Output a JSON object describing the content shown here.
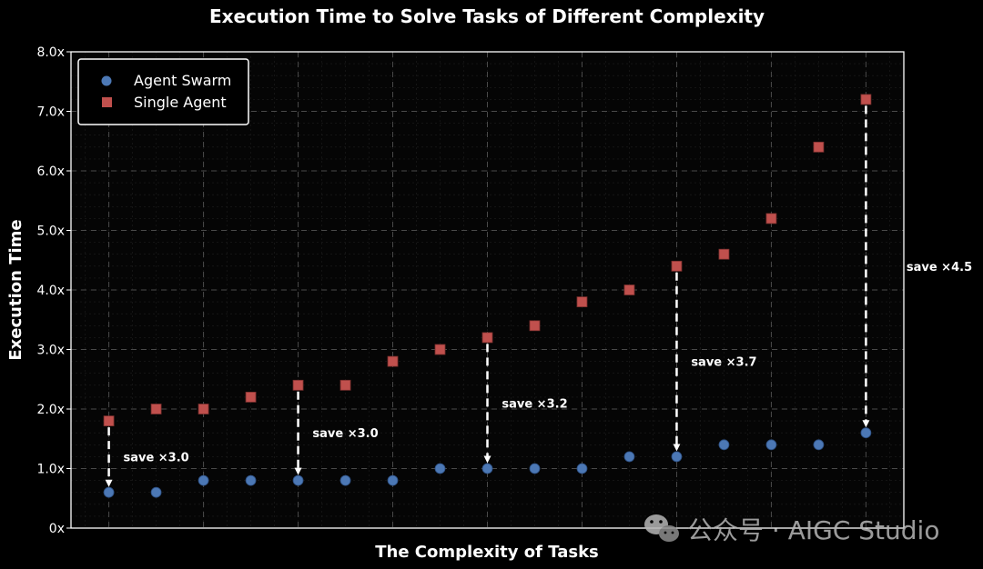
{
  "chart_data": {
    "type": "scatter",
    "title": "Execution Time to Solve Tasks of Different Complexity",
    "xlabel": "The Complexity of Tasks",
    "ylabel": "Execution Time",
    "x": [
      1,
      2,
      3,
      4,
      5,
      6,
      7,
      8,
      9,
      10,
      11,
      12,
      13,
      14,
      15,
      16,
      17
    ],
    "xlim": [
      0.2,
      17.8
    ],
    "ylim": [
      0,
      8
    ],
    "y_ticks": [
      0,
      1,
      2,
      3,
      4,
      5,
      6,
      7,
      8
    ],
    "y_tick_labels": [
      "0x",
      "1.0x",
      "2.0x",
      "3.0x",
      "4.0x",
      "5.0x",
      "6.0x",
      "7.0x",
      "8.0x"
    ],
    "x_gridlines_at": [
      1,
      3,
      5,
      7,
      9,
      11,
      13,
      15,
      17
    ],
    "grid": true,
    "legend_position": "top-left",
    "series": [
      {
        "name": "Agent Swarm",
        "marker": "circle",
        "color": "#4c78b5",
        "values": [
          0.6,
          0.6,
          0.8,
          0.8,
          0.8,
          0.8,
          0.8,
          1.0,
          1.0,
          1.0,
          1.0,
          1.2,
          1.2,
          1.4,
          1.4,
          1.4,
          1.6
        ]
      },
      {
        "name": "Single Agent",
        "marker": "square",
        "color": "#c0504d",
        "values": [
          1.8,
          2.0,
          2.0,
          2.2,
          2.4,
          2.4,
          2.8,
          3.0,
          3.2,
          3.4,
          3.8,
          4.0,
          4.4,
          4.6,
          5.2,
          6.4,
          7.2
        ]
      }
    ],
    "annotations": [
      {
        "x": 1,
        "from": 1.8,
        "to": 0.6,
        "text": "save ×3.0",
        "label_x": 2.0,
        "label_y": 1.2
      },
      {
        "x": 5,
        "from": 2.4,
        "to": 0.8,
        "text": "save ×3.0",
        "label_x": 6.0,
        "label_y": 1.6
      },
      {
        "x": 9,
        "from": 3.2,
        "to": 1.0,
        "text": "save ×3.2",
        "label_x": 10.0,
        "label_y": 2.1
      },
      {
        "x": 13,
        "from": 4.4,
        "to": 1.2,
        "text": "save ×3.7",
        "label_x": 14.0,
        "label_y": 2.8
      },
      {
        "x": 17,
        "from": 7.2,
        "to": 1.6,
        "text": "save ×4.5",
        "label_x": 18.55,
        "label_y": 4.4
      }
    ]
  },
  "watermark": {
    "text": "公众号 · AIGC Studio",
    "icon": "wechat-icon"
  }
}
